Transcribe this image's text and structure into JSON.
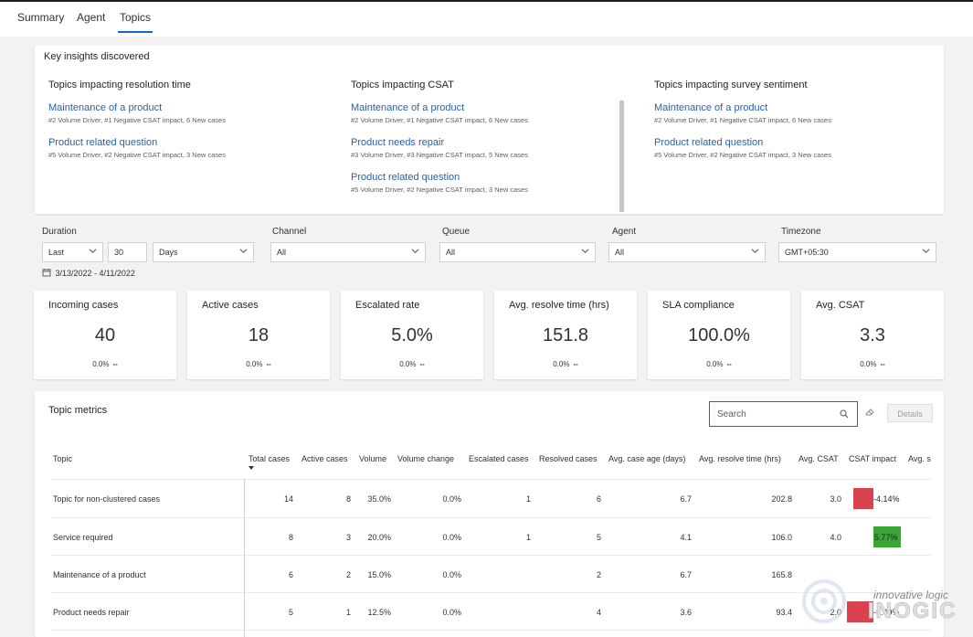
{
  "tabs": [
    "Summary",
    "Agent",
    "Topics"
  ],
  "insights": {
    "title": "Key insights discovered",
    "columns": [
      {
        "title": "Topics impacting resolution time",
        "items": [
          {
            "label": "Maintenance of a product",
            "detail": "#2 Volume Driver, #1 Negative CSAT impact, 6 New cases"
          },
          {
            "label": "Product related question",
            "detail": "#5 Volume Driver, #2 Negative CSAT impact, 3 New cases"
          }
        ]
      },
      {
        "title": "Topics impacting CSAT",
        "items": [
          {
            "label": "Maintenance of a product",
            "detail": "#2 Volume Driver, #1 Negative CSAT impact, 6 New cases"
          },
          {
            "label": "Product needs repair",
            "detail": "#3 Volume Driver, #3 Negative CSAT impact, 5 New cases"
          },
          {
            "label": "Product related question",
            "detail": "#5 Volume Driver, #2 Negative CSAT impact, 3 New cases"
          }
        ]
      },
      {
        "title": "Topics impacting survey sentiment",
        "items": [
          {
            "label": "Maintenance of a product",
            "detail": "#2 Volume Driver, #1 Negative CSAT impact, 6 New cases"
          },
          {
            "label": "Product related question",
            "detail": "#5 Volume Driver, #2 Negative CSAT impact, 3 New cases"
          }
        ]
      }
    ]
  },
  "filters": {
    "duration": {
      "label": "Duration",
      "period": "Last",
      "count": "30",
      "unit": "Days",
      "range": "3/13/2022 - 4/11/2022"
    },
    "channel": {
      "label": "Channel",
      "value": "All"
    },
    "queue": {
      "label": "Queue",
      "value": "All"
    },
    "agent": {
      "label": "Agent",
      "value": "All"
    },
    "timezone": {
      "label": "Timezone",
      "value": "GMT+05:30"
    }
  },
  "kpis": [
    {
      "title": "Incoming cases",
      "value": "40",
      "change": "0.0%",
      "trend": "--"
    },
    {
      "title": "Active cases",
      "value": "18",
      "change": "0.0%",
      "trend": "--"
    },
    {
      "title": "Escalated rate",
      "value": "5.0%",
      "change": "0.0%",
      "trend": "--"
    },
    {
      "title": "Avg. resolve time (hrs)",
      "value": "151.8",
      "change": "0.0%",
      "trend": "--"
    },
    {
      "title": "SLA compliance",
      "value": "100.0%",
      "change": "0.0%",
      "trend": "--"
    },
    {
      "title": "Avg. CSAT",
      "value": "3.3",
      "change": "0.0%",
      "trend": "--"
    }
  ],
  "topic_metrics": {
    "title": "Topic metrics",
    "search_placeholder": "Search",
    "details_label": "Details",
    "columns": [
      "Topic",
      "Total cases",
      "Active cases",
      "Volume",
      "Volume change",
      "Escalated cases",
      "Resolved cases",
      "Avg. case age (days)",
      "Avg. resolve time (hrs)",
      "Avg. CSAT",
      "CSAT impact",
      "Avg. s"
    ],
    "rows": [
      {
        "topic": "Topic for non-clustered cases",
        "total": "14",
        "active": "8",
        "volume": "35.0%",
        "volume_change": "0.0%",
        "escalated": "1",
        "resolved": "6",
        "age": "6.7",
        "resolve_time": "202.8",
        "csat": "3.0",
        "impact": "-4.14%",
        "impact_value": -4.14,
        "impact_color": "#d9424f"
      },
      {
        "topic": "Service required",
        "total": "8",
        "active": "3",
        "volume": "20.0%",
        "volume_change": "0.0%",
        "escalated": "1",
        "resolved": "5",
        "age": "4.1",
        "resolve_time": "106.0",
        "csat": "4.0",
        "impact": "5.77%",
        "impact_value": 5.77,
        "impact_color": "#3aa636"
      },
      {
        "topic": "Maintenance of a product",
        "total": "6",
        "active": "2",
        "volume": "15.0%",
        "volume_change": "0.0%",
        "escalated": "",
        "resolved": "2",
        "age": "6.7",
        "resolve_time": "165.8",
        "csat": "",
        "impact": "",
        "impact_value": null,
        "impact_color": ""
      },
      {
        "topic": "Product needs repair",
        "total": "5",
        "active": "1",
        "volume": "12.5%",
        "volume_change": "0.0%",
        "escalated": "",
        "resolved": "4",
        "age": "3.6",
        "resolve_time": "93.4",
        "csat": "2.0",
        "impact": "-5.49%",
        "impact_value": -5.49,
        "impact_color": "#d9424f"
      }
    ]
  },
  "watermark": {
    "tagline": "innovative logic",
    "brand": "INOGIC"
  }
}
